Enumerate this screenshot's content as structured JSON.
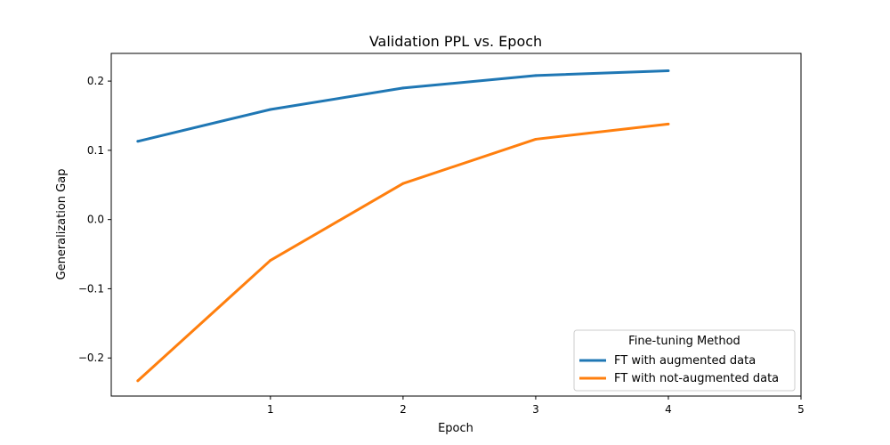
{
  "chart_data": {
    "type": "line",
    "title": "Validation PPL  vs. Epoch",
    "xlabel": "Epoch",
    "ylabel": "Generalization Gap",
    "xlim": [
      -0.2,
      5
    ],
    "ylim": [
      -0.255,
      0.24
    ],
    "xticks": [
      1,
      2,
      3,
      4,
      5
    ],
    "yticks": [
      -0.2,
      -0.1,
      0.0,
      0.1,
      0.2
    ],
    "ytick_labels": [
      "−0.2",
      "−0.1",
      "0.0",
      "0.1",
      "0.2"
    ],
    "x": [
      0,
      1,
      2,
      3,
      4
    ],
    "grid": false,
    "legend": {
      "title": "Fine-tuning Method",
      "placement": "lower-right"
    },
    "series": [
      {
        "name": "FT with augmented data",
        "color": "#1f77b4",
        "values": [
          0.113,
          0.159,
          0.19,
          0.208,
          0.215
        ]
      },
      {
        "name": "FT with not-augmented data",
        "color": "#ff7f0e",
        "values": [
          -0.233,
          -0.059,
          0.052,
          0.116,
          0.138
        ]
      }
    ]
  }
}
